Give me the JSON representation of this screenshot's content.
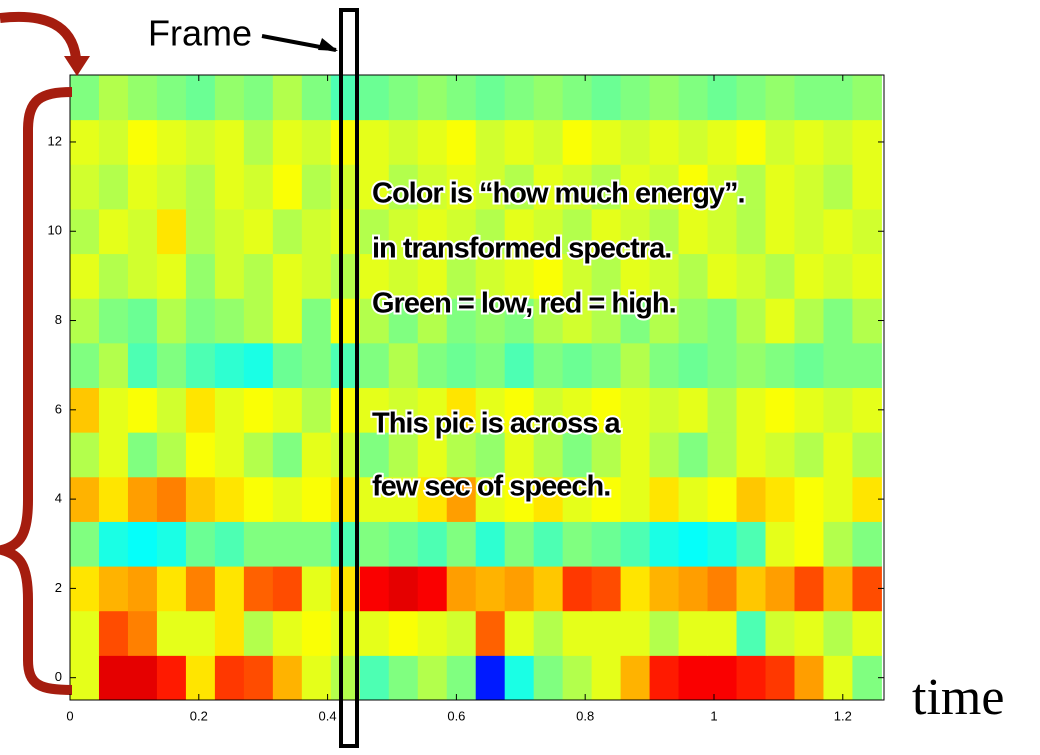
{
  "chart_data": {
    "type": "heatmap",
    "colormap": "jet",
    "frame_label": "Frame",
    "x_label": "time",
    "annotations": [
      "Color is “how much energy”.",
      "in transformed spectra.",
      "Green = low, red = high.",
      "This pic is across a",
      "few sec of speech."
    ],
    "xbins": [
      0,
      0.045,
      0.09,
      0.135,
      0.18,
      0.225,
      0.27,
      0.315,
      0.36,
      0.405,
      0.45,
      0.495,
      0.54,
      0.585,
      0.63,
      0.675,
      0.72,
      0.765,
      0.81,
      0.855,
      0.9,
      0.945,
      0.99,
      1.035,
      1.08,
      1.125,
      1.17,
      1.215,
      1.26
    ],
    "y": [
      0,
      1,
      2,
      3,
      4,
      5,
      6,
      7,
      8,
      9,
      10,
      11,
      12,
      13
    ],
    "values": [
      [
        0.6,
        0.9,
        0.9,
        0.85,
        0.65,
        0.82,
        0.8,
        0.7,
        0.6,
        0.55,
        0.45,
        0.5,
        0.55,
        0.5,
        0.15,
        0.4,
        0.5,
        0.55,
        0.6,
        0.7,
        0.85,
        0.88,
        0.88,
        0.85,
        0.82,
        0.72,
        0.6,
        0.5
      ],
      [
        0.6,
        0.8,
        0.75,
        0.6,
        0.6,
        0.65,
        0.55,
        0.6,
        0.62,
        0.6,
        0.6,
        0.62,
        0.6,
        0.58,
        0.78,
        0.6,
        0.55,
        0.6,
        0.6,
        0.6,
        0.55,
        0.6,
        0.6,
        0.45,
        0.58,
        0.6,
        0.55,
        0.6
      ],
      [
        0.65,
        0.7,
        0.72,
        0.65,
        0.75,
        0.65,
        0.78,
        0.8,
        0.6,
        0.65,
        0.88,
        0.9,
        0.88,
        0.72,
        0.7,
        0.72,
        0.68,
        0.82,
        0.8,
        0.65,
        0.7,
        0.72,
        0.75,
        0.68,
        0.72,
        0.8,
        0.7,
        0.8
      ],
      [
        0.5,
        0.4,
        0.38,
        0.4,
        0.48,
        0.45,
        0.5,
        0.5,
        0.5,
        0.45,
        0.5,
        0.48,
        0.45,
        0.5,
        0.42,
        0.5,
        0.45,
        0.5,
        0.48,
        0.45,
        0.4,
        0.38,
        0.4,
        0.45,
        0.6,
        0.62,
        0.55,
        0.5
      ],
      [
        0.7,
        0.65,
        0.72,
        0.75,
        0.68,
        0.65,
        0.62,
        0.6,
        0.62,
        0.65,
        0.6,
        0.6,
        0.65,
        0.72,
        0.6,
        0.62,
        0.65,
        0.6,
        0.62,
        0.6,
        0.65,
        0.6,
        0.62,
        0.68,
        0.65,
        0.62,
        0.6,
        0.65
      ],
      [
        0.55,
        0.6,
        0.5,
        0.55,
        0.62,
        0.6,
        0.55,
        0.5,
        0.6,
        0.58,
        0.5,
        0.55,
        0.6,
        0.55,
        0.52,
        0.6,
        0.55,
        0.5,
        0.55,
        0.6,
        0.55,
        0.5,
        0.55,
        0.6,
        0.58,
        0.55,
        0.6,
        0.55
      ],
      [
        0.68,
        0.6,
        0.62,
        0.58,
        0.65,
        0.6,
        0.62,
        0.6,
        0.55,
        0.62,
        0.6,
        0.58,
        0.6,
        0.65,
        0.6,
        0.62,
        0.58,
        0.6,
        0.62,
        0.6,
        0.58,
        0.6,
        0.55,
        0.6,
        0.62,
        0.6,
        0.58,
        0.6
      ],
      [
        0.5,
        0.55,
        0.45,
        0.5,
        0.45,
        0.42,
        0.4,
        0.48,
        0.5,
        0.45,
        0.5,
        0.55,
        0.5,
        0.48,
        0.5,
        0.45,
        0.5,
        0.48,
        0.5,
        0.55,
        0.5,
        0.48,
        0.5,
        0.52,
        0.5,
        0.48,
        0.5,
        0.5
      ],
      [
        0.55,
        0.5,
        0.48,
        0.55,
        0.5,
        0.52,
        0.55,
        0.6,
        0.5,
        0.62,
        0.55,
        0.5,
        0.55,
        0.5,
        0.52,
        0.5,
        0.55,
        0.58,
        0.55,
        0.5,
        0.55,
        0.52,
        0.5,
        0.55,
        0.6,
        0.55,
        0.5,
        0.55
      ],
      [
        0.6,
        0.55,
        0.58,
        0.6,
        0.52,
        0.58,
        0.55,
        0.6,
        0.58,
        0.55,
        0.6,
        0.58,
        0.6,
        0.55,
        0.58,
        0.6,
        0.62,
        0.58,
        0.55,
        0.6,
        0.58,
        0.55,
        0.6,
        0.58,
        0.55,
        0.6,
        0.58,
        0.6
      ],
      [
        0.55,
        0.6,
        0.58,
        0.65,
        0.55,
        0.58,
        0.6,
        0.55,
        0.58,
        0.6,
        0.55,
        0.58,
        0.6,
        0.58,
        0.55,
        0.6,
        0.58,
        0.55,
        0.6,
        0.58,
        0.55,
        0.6,
        0.58,
        0.55,
        0.6,
        0.58,
        0.6,
        0.58
      ],
      [
        0.58,
        0.55,
        0.6,
        0.58,
        0.55,
        0.6,
        0.58,
        0.62,
        0.55,
        0.58,
        0.6,
        0.55,
        0.58,
        0.6,
        0.58,
        0.55,
        0.6,
        0.58,
        0.55,
        0.6,
        0.58,
        0.62,
        0.58,
        0.55,
        0.6,
        0.58,
        0.55,
        0.6
      ],
      [
        0.6,
        0.58,
        0.62,
        0.6,
        0.58,
        0.6,
        0.55,
        0.6,
        0.58,
        0.62,
        0.6,
        0.58,
        0.6,
        0.62,
        0.58,
        0.6,
        0.58,
        0.62,
        0.6,
        0.58,
        0.6,
        0.58,
        0.6,
        0.62,
        0.58,
        0.6,
        0.58,
        0.6
      ],
      [
        0.5,
        0.55,
        0.52,
        0.5,
        0.48,
        0.52,
        0.5,
        0.55,
        0.5,
        0.45,
        0.48,
        0.5,
        0.52,
        0.5,
        0.48,
        0.5,
        0.52,
        0.5,
        0.48,
        0.5,
        0.52,
        0.5,
        0.48,
        0.5,
        0.52,
        0.5,
        0.5,
        0.52
      ]
    ],
    "xlim": [
      0,
      1.264
    ],
    "ylim": [
      -0.5,
      13.5
    ],
    "xticks": [
      0,
      0.2,
      0.4,
      0.6,
      0.8,
      1,
      1.2
    ],
    "yticks": [
      0,
      2,
      4,
      6,
      8,
      10,
      12
    ]
  }
}
